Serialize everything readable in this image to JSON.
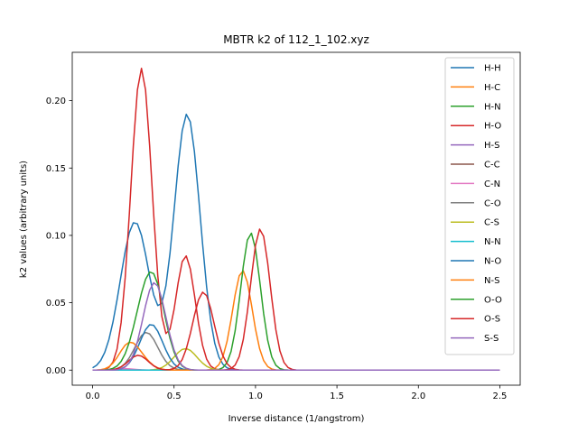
{
  "chart_data": {
    "type": "line",
    "title": "MBTR k2 of 112_1_102.xyz",
    "xlabel": "Inverse distance (1/angstrom)",
    "ylabel": "k2 values (arbitrary units)",
    "xlim": [
      -0.125,
      2.625
    ],
    "ylim": [
      -0.0112,
      0.2359
    ],
    "xticks": [
      0.0,
      0.5,
      1.0,
      1.5,
      2.0,
      2.5
    ],
    "xtick_labels": [
      "0.0",
      "0.5",
      "1.0",
      "1.5",
      "2.0",
      "2.5"
    ],
    "yticks": [
      0.0,
      0.05,
      0.1,
      0.15,
      0.2
    ],
    "ytick_labels": [
      "0.00",
      "0.05",
      "0.10",
      "0.15",
      "0.20"
    ],
    "grid": false,
    "legend_position": "top-right",
    "x_range": [
      0.0,
      2.5
    ],
    "series": [
      {
        "name": "H-H",
        "color": "#1f77b4",
        "peaks": [
          [
            0.26,
            0.11,
            0.09
          ],
          [
            0.58,
            0.19,
            0.08
          ]
        ]
      },
      {
        "name": "H-C",
        "color": "#ff7f0e",
        "peaks": [
          [
            0.92,
            0.074,
            0.06
          ]
        ]
      },
      {
        "name": "H-N",
        "color": "#2ca02c",
        "peaks": [
          [
            0.97,
            0.102,
            0.06
          ]
        ]
      },
      {
        "name": "H-O",
        "color": "#d62728",
        "peaks": [
          [
            0.3,
            0.224,
            0.065
          ],
          [
            0.57,
            0.085,
            0.06
          ],
          [
            1.03,
            0.105,
            0.06
          ]
        ]
      },
      {
        "name": "H-S",
        "color": "#9467bd",
        "peaks": []
      },
      {
        "name": "C-C",
        "color": "#8c564b",
        "peaks": []
      },
      {
        "name": "C-N",
        "color": "#e377c2",
        "peaks": [
          [
            0.2,
            0.001,
            0.06
          ]
        ]
      },
      {
        "name": "C-O",
        "color": "#7f7f7f",
        "peaks": [
          [
            0.33,
            0.028,
            0.07
          ]
        ]
      },
      {
        "name": "C-S",
        "color": "#bcbd22",
        "peaks": [
          [
            0.57,
            0.016,
            0.07
          ]
        ]
      },
      {
        "name": "N-N",
        "color": "#17becf",
        "peaks": []
      },
      {
        "name": "N-O",
        "color": "#1f77b4",
        "peaks": [
          [
            0.36,
            0.034,
            0.07
          ]
        ]
      },
      {
        "name": "N-S",
        "color": "#ff7f0e",
        "peaks": [
          [
            0.22,
            0.018,
            0.06
          ],
          [
            0.3,
            0.006,
            0.06
          ]
        ]
      },
      {
        "name": "O-O",
        "color": "#2ca02c",
        "peaks": [
          [
            0.38,
            0.056,
            0.07
          ],
          [
            0.3,
            0.028,
            0.07
          ]
        ]
      },
      {
        "name": "O-S",
        "color": "#d62728",
        "peaks": [
          [
            0.68,
            0.058,
            0.065
          ],
          [
            0.28,
            0.011,
            0.06
          ]
        ]
      },
      {
        "name": "S-S",
        "color": "#9467bd",
        "peaks": [
          [
            0.38,
            0.065,
            0.07
          ]
        ]
      }
    ]
  }
}
